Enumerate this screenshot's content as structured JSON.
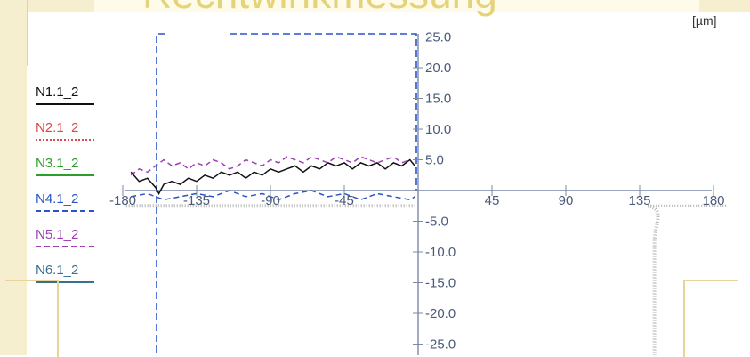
{
  "header": {
    "title_partial": "Rechtwinkmessung"
  },
  "chart_data": {
    "type": "line",
    "unit_label": "[µm]",
    "xlim": [
      -190,
      190
    ],
    "ylim": [
      -28,
      28
    ],
    "x_ticks": [
      -180,
      -135,
      -90,
      -45,
      45,
      90,
      135,
      180
    ],
    "y_ticks": [
      25.0,
      20.0,
      15.0,
      10.0,
      5.0,
      -5.0,
      -10.0,
      -15.0,
      -20.0,
      -25.0
    ],
    "x_tick_labels": [
      "-180",
      "-135",
      "-90",
      "-45",
      "45",
      "90",
      "135",
      "180"
    ],
    "y_tick_labels": [
      "25.0",
      "20.0",
      "15.0",
      "10.0",
      "5.0",
      "-5.0",
      "-10.0",
      "-15.0",
      "-20.0",
      "-25.0"
    ],
    "series": [
      {
        "name": "N1.1_2",
        "color": "#111111",
        "dash": "solid",
        "points": [
          [
            -175,
            3.0
          ],
          [
            -170,
            1.5
          ],
          [
            -165,
            2.0
          ],
          [
            -160,
            0.5
          ],
          [
            -158,
            -0.5
          ],
          [
            -155,
            1.0
          ],
          [
            -150,
            1.5
          ],
          [
            -145,
            1.0
          ],
          [
            -140,
            2.0
          ],
          [
            -135,
            1.5
          ],
          [
            -130,
            2.5
          ],
          [
            -125,
            2.0
          ],
          [
            -120,
            3.0
          ],
          [
            -115,
            2.5
          ],
          [
            -110,
            3.0
          ],
          [
            -105,
            2.0
          ],
          [
            -100,
            3.0
          ],
          [
            -95,
            2.5
          ],
          [
            -90,
            3.5
          ],
          [
            -85,
            3.0
          ],
          [
            -80,
            3.5
          ],
          [
            -75,
            4.0
          ],
          [
            -70,
            3.0
          ],
          [
            -65,
            4.0
          ],
          [
            -60,
            3.5
          ],
          [
            -55,
            4.5
          ],
          [
            -50,
            4.0
          ],
          [
            -45,
            4.5
          ],
          [
            -40,
            3.5
          ],
          [
            -35,
            4.5
          ],
          [
            -30,
            4.0
          ],
          [
            -25,
            4.5
          ],
          [
            -20,
            3.5
          ],
          [
            -15,
            4.5
          ],
          [
            -10,
            4.0
          ],
          [
            -5,
            5.0
          ],
          [
            -2,
            4.0
          ]
        ]
      },
      {
        "name": "N2.1_2",
        "color": "#d94a4a",
        "dash": "dotted",
        "points": []
      },
      {
        "name": "N3.1_2",
        "color": "#2aa02a",
        "dash": "solid",
        "points": []
      },
      {
        "name": "N4.1_2",
        "color": "#2a55c8",
        "dash": "dashed",
        "points": [
          [
            -175,
            -1.0
          ],
          [
            -165,
            -0.5
          ],
          [
            -155,
            -1.5
          ],
          [
            -145,
            -1.0
          ],
          [
            -135,
            -0.5
          ],
          [
            -125,
            -1.0
          ],
          [
            -115,
            0.0
          ],
          [
            -105,
            -1.0
          ],
          [
            -95,
            -0.5
          ],
          [
            -85,
            -1.5
          ],
          [
            -75,
            -0.5
          ],
          [
            -65,
            0.0
          ],
          [
            -55,
            -1.0
          ],
          [
            -45,
            -0.5
          ],
          [
            -35,
            -1.5
          ],
          [
            -25,
            -0.5
          ],
          [
            -15,
            -1.0
          ],
          [
            -5,
            -1.5
          ],
          [
            -2,
            -1.0
          ]
        ]
      },
      {
        "name": "N5.1_2",
        "color": "#9b3fb2",
        "dash": "dashed",
        "points": [
          [
            -175,
            2.5
          ],
          [
            -170,
            3.5
          ],
          [
            -165,
            3.0
          ],
          [
            -160,
            4.0
          ],
          [
            -155,
            5.0
          ],
          [
            -150,
            4.0
          ],
          [
            -145,
            4.5
          ],
          [
            -140,
            3.5
          ],
          [
            -135,
            4.5
          ],
          [
            -130,
            4.0
          ],
          [
            -125,
            5.0
          ],
          [
            -120,
            4.5
          ],
          [
            -115,
            3.5
          ],
          [
            -110,
            4.0
          ],
          [
            -105,
            5.0
          ],
          [
            -100,
            4.5
          ],
          [
            -95,
            4.0
          ],
          [
            -90,
            5.0
          ],
          [
            -85,
            4.5
          ],
          [
            -80,
            5.5
          ],
          [
            -75,
            5.0
          ],
          [
            -70,
            4.5
          ],
          [
            -65,
            5.5
          ],
          [
            -60,
            5.0
          ],
          [
            -55,
            4.5
          ],
          [
            -50,
            5.5
          ],
          [
            -45,
            5.0
          ],
          [
            -40,
            4.5
          ],
          [
            -35,
            5.5
          ],
          [
            -30,
            5.0
          ],
          [
            -25,
            4.5
          ],
          [
            -20,
            5.0
          ],
          [
            -15,
            5.5
          ],
          [
            -10,
            4.5
          ],
          [
            -5,
            5.0
          ]
        ]
      },
      {
        "name": "N6.1_2",
        "color": "#3a6f8f",
        "dash": "solid",
        "points": []
      }
    ],
    "reference_lines": [
      {
        "label": "outer-boundary",
        "color": "#2a55c8"
      },
      {
        "label": "dotted-envelope",
        "color": "#b0b0b0"
      }
    ]
  }
}
